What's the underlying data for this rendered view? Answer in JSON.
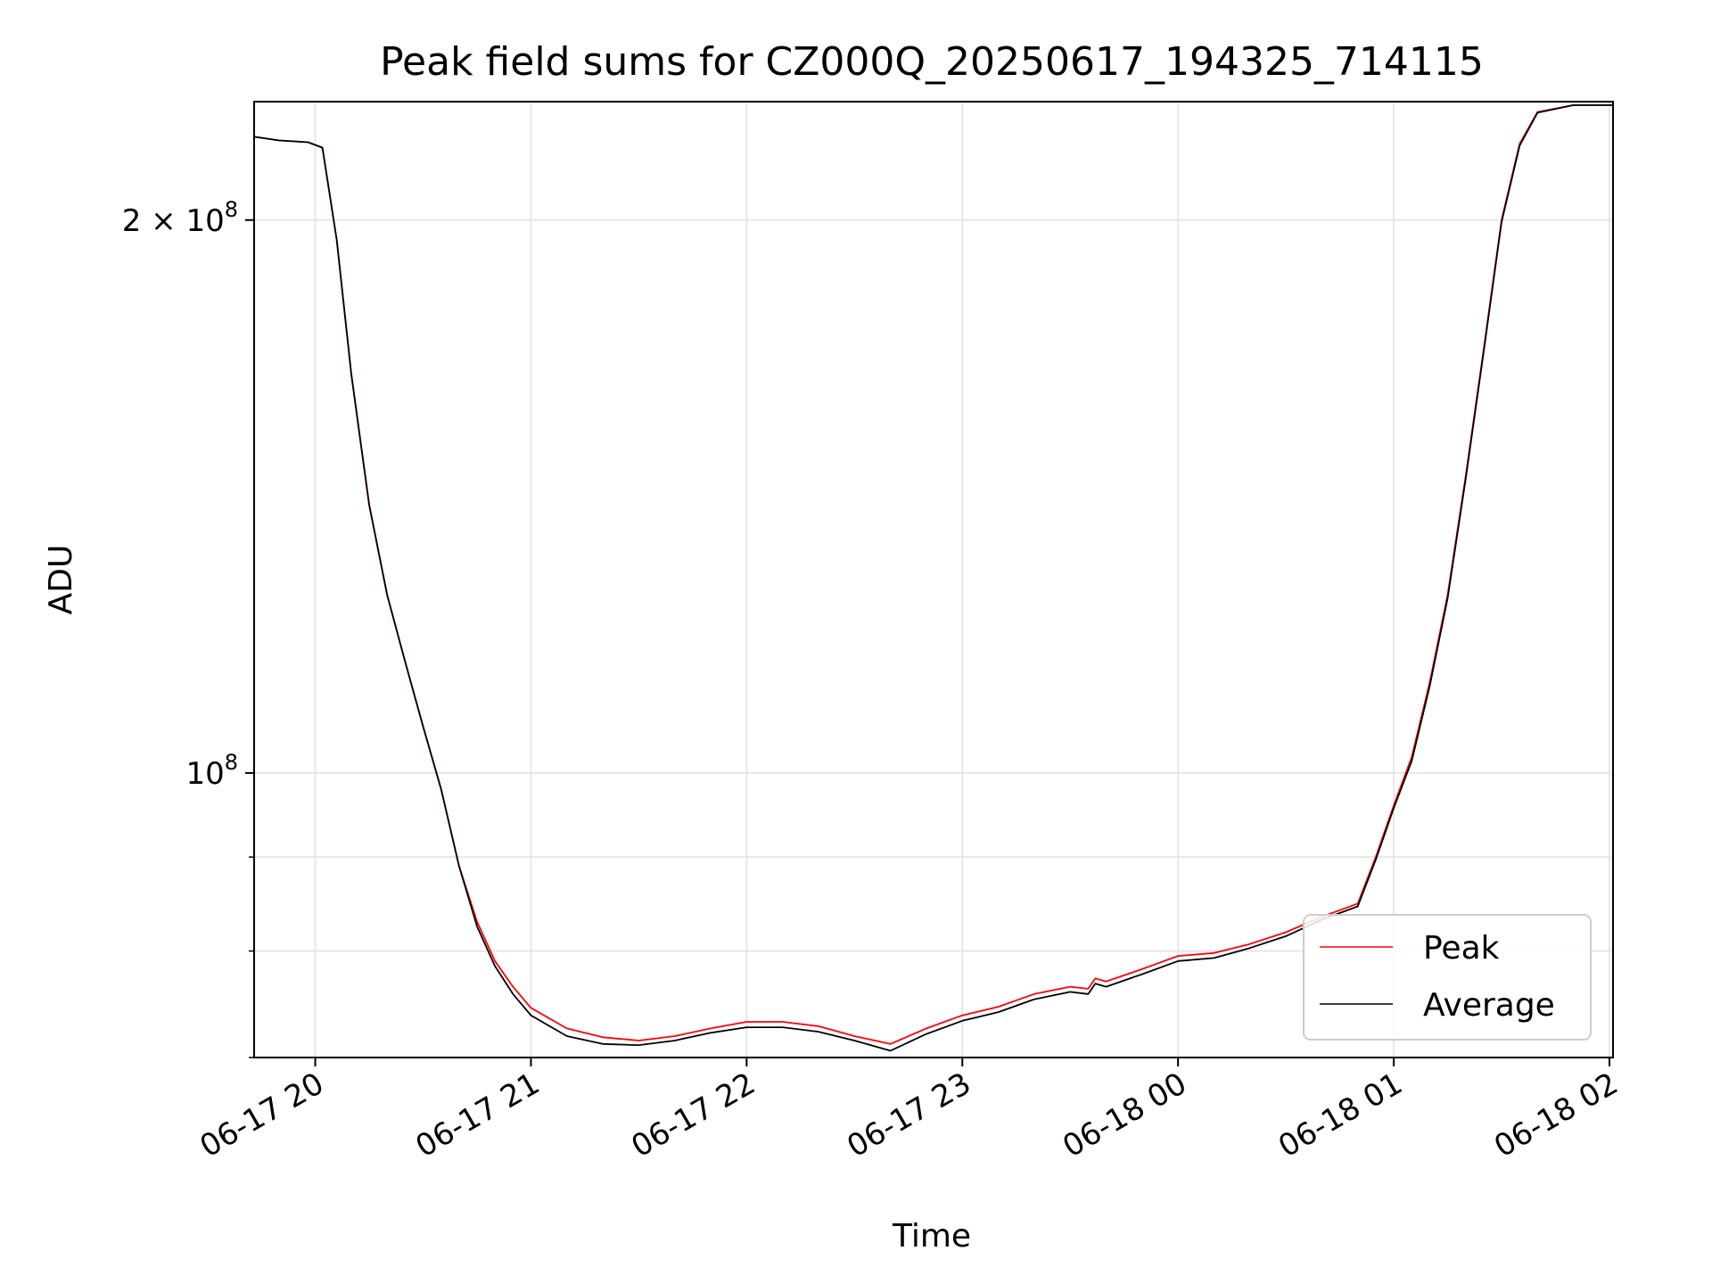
{
  "chart_data": {
    "type": "line",
    "title": "Peak field sums for CZ000Q_20250617_194325_714115",
    "xlabel": "Time",
    "ylabel": "ADU",
    "y_scale": "log",
    "xlim": [
      "2025-06-17 19:43",
      "2025-06-18 02:01"
    ],
    "ylim": [
      70000000,
      232000000
    ],
    "grid": true,
    "legend_position": "lower-right",
    "x_ticks": [
      {
        "t": "2025-06-17 20:00",
        "label": "06-17 20"
      },
      {
        "t": "2025-06-17 21:00",
        "label": "06-17 21"
      },
      {
        "t": "2025-06-17 22:00",
        "label": "06-17 22"
      },
      {
        "t": "2025-06-17 23:00",
        "label": "06-17 23"
      },
      {
        "t": "2025-06-18 00:00",
        "label": "06-18 00"
      },
      {
        "t": "2025-06-18 01:00",
        "label": "06-18 01"
      },
      {
        "t": "2025-06-18 02:00",
        "label": "06-18 02"
      }
    ],
    "y_ticks_major": [
      {
        "v": 100000000,
        "base": "10",
        "exp": "8"
      },
      {
        "v": 200000000,
        "base": "2 × 10",
        "exp": "8"
      }
    ],
    "y_ticks_minor": [
      90000000,
      80000000,
      70000000
    ],
    "series": [
      {
        "name": "Peak",
        "color": "#ff0000",
        "points": [
          [
            "2025-06-17 19:43",
            222000000
          ],
          [
            "2025-06-17 19:50",
            221000000
          ],
          [
            "2025-06-17 19:58",
            220500000
          ],
          [
            "2025-06-17 20:02",
            219000000
          ],
          [
            "2025-06-17 20:06",
            195000000
          ],
          [
            "2025-06-17 20:10",
            165000000
          ],
          [
            "2025-06-17 20:15",
            140000000
          ],
          [
            "2025-06-17 20:20",
            125000000
          ],
          [
            "2025-06-17 20:25",
            115000000
          ],
          [
            "2025-06-17 20:30",
            106000000
          ],
          [
            "2025-06-17 20:35",
            98000000
          ],
          [
            "2025-06-17 20:40",
            89000000
          ],
          [
            "2025-06-17 20:45",
            83000000
          ],
          [
            "2025-06-17 20:50",
            79000000
          ],
          [
            "2025-06-17 20:55",
            76500000
          ],
          [
            "2025-06-17 21:00",
            74500000
          ],
          [
            "2025-06-17 21:10",
            72600000
          ],
          [
            "2025-06-17 21:20",
            71800000
          ],
          [
            "2025-06-17 21:30",
            71500000
          ],
          [
            "2025-06-17 21:40",
            71900000
          ],
          [
            "2025-06-17 21:50",
            72600000
          ],
          [
            "2025-06-17 22:00",
            73200000
          ],
          [
            "2025-06-17 22:10",
            73200000
          ],
          [
            "2025-06-17 22:20",
            72800000
          ],
          [
            "2025-06-17 22:30",
            71900000
          ],
          [
            "2025-06-17 22:40",
            71200000
          ],
          [
            "2025-06-17 22:50",
            72600000
          ],
          [
            "2025-06-17 23:00",
            73800000
          ],
          [
            "2025-06-17 23:10",
            74600000
          ],
          [
            "2025-06-17 23:20",
            75800000
          ],
          [
            "2025-06-17 23:30",
            76500000
          ],
          [
            "2025-06-17 23:35",
            76300000
          ],
          [
            "2025-06-17 23:37",
            77300000
          ],
          [
            "2025-06-17 23:40",
            77000000
          ],
          [
            "2025-06-17 23:50",
            78200000
          ],
          [
            "2025-06-18 00:00",
            79500000
          ],
          [
            "2025-06-18 00:10",
            79800000
          ],
          [
            "2025-06-18 00:20",
            80700000
          ],
          [
            "2025-06-18 00:30",
            81900000
          ],
          [
            "2025-06-18 00:40",
            83500000
          ],
          [
            "2025-06-18 00:50",
            84900000
          ],
          [
            "2025-06-18 00:55",
            90000000
          ],
          [
            "2025-06-18 01:00",
            96000000
          ],
          [
            "2025-06-18 01:05",
            102000000
          ],
          [
            "2025-06-18 01:10",
            112000000
          ],
          [
            "2025-06-18 01:15",
            125000000
          ],
          [
            "2025-06-18 01:20",
            145000000
          ],
          [
            "2025-06-18 01:25",
            170000000
          ],
          [
            "2025-06-18 01:30",
            200000000
          ],
          [
            "2025-06-18 01:35",
            220000000
          ],
          [
            "2025-06-18 01:40",
            229000000
          ],
          [
            "2025-06-18 01:50",
            231000000
          ],
          [
            "2025-06-18 02:01",
            231000000
          ]
        ]
      },
      {
        "name": "Average",
        "color": "#000000",
        "points": [
          [
            "2025-06-17 19:43",
            222000000
          ],
          [
            "2025-06-17 19:50",
            221000000
          ],
          [
            "2025-06-17 19:58",
            220500000
          ],
          [
            "2025-06-17 20:02",
            219000000
          ],
          [
            "2025-06-17 20:06",
            195000000
          ],
          [
            "2025-06-17 20:10",
            165000000
          ],
          [
            "2025-06-17 20:15",
            140000000
          ],
          [
            "2025-06-17 20:20",
            125000000
          ],
          [
            "2025-06-17 20:25",
            115000000
          ],
          [
            "2025-06-17 20:30",
            106000000
          ],
          [
            "2025-06-17 20:35",
            98000000
          ],
          [
            "2025-06-17 20:40",
            89000000
          ],
          [
            "2025-06-17 20:45",
            82500000
          ],
          [
            "2025-06-17 20:50",
            78500000
          ],
          [
            "2025-06-17 20:55",
            75800000
          ],
          [
            "2025-06-17 21:00",
            73800000
          ],
          [
            "2025-06-17 21:10",
            71900000
          ],
          [
            "2025-06-17 21:20",
            71200000
          ],
          [
            "2025-06-17 21:30",
            71100000
          ],
          [
            "2025-06-17 21:40",
            71500000
          ],
          [
            "2025-06-17 21:50",
            72200000
          ],
          [
            "2025-06-17 22:00",
            72700000
          ],
          [
            "2025-06-17 22:10",
            72700000
          ],
          [
            "2025-06-17 22:20",
            72300000
          ],
          [
            "2025-06-17 22:30",
            71500000
          ],
          [
            "2025-06-17 22:40",
            70600000
          ],
          [
            "2025-06-17 22:50",
            72100000
          ],
          [
            "2025-06-17 23:00",
            73300000
          ],
          [
            "2025-06-17 23:10",
            74100000
          ],
          [
            "2025-06-17 23:20",
            75300000
          ],
          [
            "2025-06-17 23:30",
            76000000
          ],
          [
            "2025-06-17 23:35",
            75800000
          ],
          [
            "2025-06-17 23:37",
            76800000
          ],
          [
            "2025-06-17 23:40",
            76500000
          ],
          [
            "2025-06-17 23:50",
            77700000
          ],
          [
            "2025-06-18 00:00",
            79000000
          ],
          [
            "2025-06-18 00:10",
            79300000
          ],
          [
            "2025-06-18 00:20",
            80300000
          ],
          [
            "2025-06-18 00:30",
            81500000
          ],
          [
            "2025-06-18 00:40",
            83200000
          ],
          [
            "2025-06-18 00:50",
            84600000
          ],
          [
            "2025-06-18 00:55",
            89700000
          ],
          [
            "2025-06-18 01:00",
            95700000
          ],
          [
            "2025-06-18 01:05",
            101500000
          ],
          [
            "2025-06-18 01:10",
            111500000
          ],
          [
            "2025-06-18 01:15",
            124500000
          ],
          [
            "2025-06-18 01:20",
            144500000
          ],
          [
            "2025-06-18 01:25",
            169500000
          ],
          [
            "2025-06-18 01:30",
            199500000
          ],
          [
            "2025-06-18 01:35",
            219500000
          ],
          [
            "2025-06-18 01:40",
            228800000
          ],
          [
            "2025-06-18 01:50",
            231000000
          ],
          [
            "2025-06-18 02:01",
            231000000
          ]
        ]
      }
    ]
  }
}
